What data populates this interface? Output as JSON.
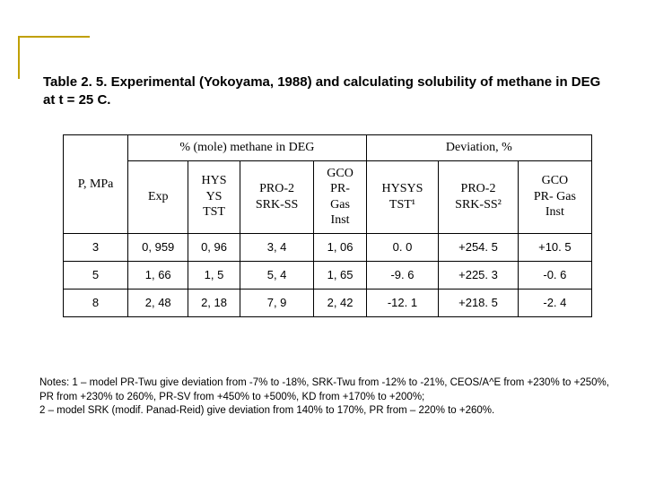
{
  "title": "Table 2. 5.  Experimental  (Yokoyama,  1988)  and  calculating  solubility  of methane in DEG at t = 25  C.",
  "table": {
    "col_p": "P, MPa",
    "grp_mole": "% (mole) methane in DEG",
    "grp_dev": "Deviation, %",
    "sub": {
      "exp": "Exp",
      "hys": "HYS\nYS\nTST",
      "pro2a": "PRO-2\nSRK-SS",
      "gcoa": "GCO\nPR-\nGas\nInst",
      "hysys": "HYSYS\nTST¹",
      "pro2b": "PRO-2\nSRK-SS²",
      "gcob": "GCO\nPR- Gas\nInst"
    },
    "rows": [
      {
        "p": "3",
        "exp": "0, 959",
        "hys": "0, 96",
        "pro2a": "3, 4",
        "gcoa": "1, 06",
        "hysys": "0. 0",
        "pro2b": "+254. 5",
        "gcob": "+10. 5"
      },
      {
        "p": "5",
        "exp": "1, 66",
        "hys": "1, 5",
        "pro2a": "5, 4",
        "gcoa": "1, 65",
        "hysys": "-9. 6",
        "pro2b": "+225. 3",
        "gcob": "-0. 6"
      },
      {
        "p": "8",
        "exp": "2, 48",
        "hys": "2, 18",
        "pro2a": "7, 9",
        "gcoa": "2, 42",
        "hysys": "-12. 1",
        "pro2b": "+218. 5",
        "gcob": "-2. 4"
      }
    ]
  },
  "notes_line1": "Notes: 1 – model PR-Twu give deviation from -7% to -18%, SRK-Twu from -12% to -21%, CEOS/A^E from +230% to +250%, PR from +230% to 260%, PR-SV from +450% to +500%, KD from +170% to +200%;",
  "notes_line2": "2 – model SRK (modif. Panad-Reid) give deviation from 140% to 170%, PR from – 220% to +260%."
}
